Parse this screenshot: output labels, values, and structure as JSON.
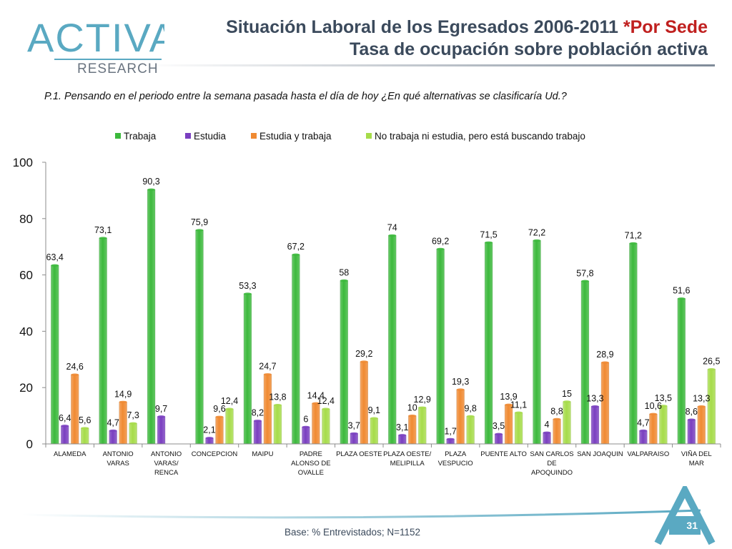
{
  "header": {
    "title_main": "Situación Laboral de los Egresados 2006-2011",
    "title_accent": " *Por Sede",
    "subtitle": "Tasa de ocupación sobre población activa",
    "logo_text": "ACTIVA",
    "logo_subtext": "RESEARCH"
  },
  "question": "P.1.  Pensando en el periodo entre la semana pasada hasta el día de hoy ¿En qué alternativas se clasificaría Ud.?",
  "footer": {
    "base_note": "Base: % Entrevistados; N=1152",
    "page_number": "31"
  },
  "colors": {
    "trabaja": "#3cb93c",
    "estudia": "#7a3fc0",
    "estudia_trabaja": "#f08a32",
    "buscando": "#a6dc4a",
    "title_accent": "#c0201f",
    "title_text": "#3b4a5c",
    "logo": "#5aa9c2"
  },
  "chart_data": {
    "type": "bar",
    "categories": [
      "ALAMEDA",
      "ANTONIO VARAS",
      "ANTONIO VARAS/ RENCA",
      "CONCEPCION",
      "MAIPU",
      "PADRE ALONSO DE OVALLE",
      "PLAZA OESTE",
      "PLAZA OESTE/ MELIPILLA",
      "PLAZA VESPUCIO",
      "PUENTE ALTO",
      "SAN CARLOS DE APOQUINDO",
      "SAN JOAQUIN",
      "VALPARAISO",
      "VIÑA DEL MAR"
    ],
    "category_lines": [
      [
        "ALAMEDA"
      ],
      [
        "ANTONIO",
        "VARAS"
      ],
      [
        "ANTONIO",
        "VARAS/",
        "RENCA"
      ],
      [
        "CONCEPCION"
      ],
      [
        "MAIPU"
      ],
      [
        "PADRE",
        "ALONSO DE",
        "OVALLE"
      ],
      [
        "PLAZA OESTE"
      ],
      [
        "PLAZA OESTE/",
        "MELIPILLA"
      ],
      [
        "PLAZA",
        "VESPUCIO"
      ],
      [
        "PUENTE ALTO"
      ],
      [
        "SAN CARLOS",
        "DE",
        "APOQUINDO"
      ],
      [
        "SAN JOAQUIN"
      ],
      [
        "VALPARAISO"
      ],
      [
        "VIÑA DEL",
        "MAR"
      ]
    ],
    "series": [
      {
        "name": "Trabaja",
        "color": "#3cb93c",
        "values": [
          63.4,
          73.1,
          90.3,
          75.9,
          53.3,
          67.2,
          58,
          74,
          69.2,
          71.5,
          72.2,
          57.8,
          71.2,
          51.6
        ],
        "labels": [
          "63,4",
          "73,1",
          "90,3",
          "75,9",
          "53,3",
          "67,2",
          "58",
          "74",
          "69,2",
          "71,5",
          "72,2",
          "57,8",
          "71,2",
          "51,6"
        ]
      },
      {
        "name": "Estudia",
        "color": "#7a3fc0",
        "values": [
          6.4,
          4.7,
          9.7,
          2.1,
          8.2,
          6,
          3.7,
          3.1,
          1.7,
          3.5,
          4,
          13.3,
          4.7,
          8.6
        ],
        "labels": [
          "6,4",
          "4,7",
          "9,7",
          "2,1",
          "8,2",
          "6",
          "3,7",
          "3,1",
          "1,7",
          "3,5",
          "4",
          "13,3",
          "4,7",
          "8,6"
        ]
      },
      {
        "name": "Estudia y trabaja",
        "color": "#f08a32",
        "values": [
          24.6,
          14.9,
          null,
          9.6,
          24.7,
          14.4,
          29.2,
          10,
          19.3,
          13.9,
          8.8,
          28.9,
          10.6,
          13.3
        ],
        "labels": [
          "24,6",
          "14,9",
          "",
          "9,6",
          "24,7",
          "14,4",
          "29,2",
          "10",
          "19,3",
          "13,9",
          "8,8",
          "28,9",
          "10,6",
          "13,3"
        ]
      },
      {
        "name": "No trabaja ni estudia, pero está buscando trabajo",
        "color": "#a6dc4a",
        "values": [
          5.6,
          7.3,
          null,
          12.4,
          13.8,
          12.4,
          9.1,
          12.9,
          9.8,
          11.1,
          15,
          null,
          13.5,
          26.5
        ],
        "labels": [
          "5,6",
          "7,3",
          "",
          "12,4",
          "13,8",
          "12,4",
          "9,1",
          "12,9",
          "9,8",
          "11,1",
          "15",
          "",
          "13,5",
          "26,5"
        ]
      }
    ],
    "y_ticks": [
      "0",
      "20",
      "40",
      "60",
      "80",
      "100"
    ],
    "ylim": [
      0,
      100
    ],
    "grid": false,
    "legend_position": "top"
  }
}
